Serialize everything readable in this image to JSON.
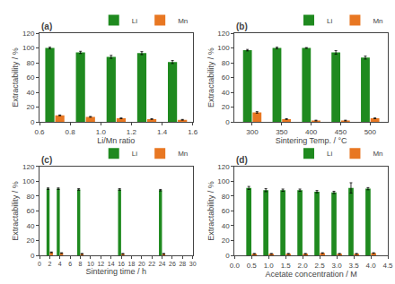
{
  "chart_data": [
    {
      "type": "bar",
      "title": "(a)",
      "x_label": "Li/Mn ratio",
      "y_label": "Extractability / %",
      "x": [
        0.7,
        0.9,
        1.1,
        1.3,
        1.5
      ],
      "series": [
        {
          "name": "Li",
          "color": "#1f8a1f",
          "values": [
            100,
            94,
            88,
            93,
            81
          ],
          "errors": [
            1.0,
            1.5,
            2.0,
            2.0,
            2.0
          ]
        },
        {
          "name": "Mn",
          "color": "#e87722",
          "values": [
            9,
            7,
            5,
            4,
            3
          ],
          "errors": [
            0.5,
            0.5,
            0.5,
            0.5,
            0.5
          ]
        }
      ],
      "xlim": [
        0.6,
        1.6
      ],
      "xticks": [
        0.6,
        0.8,
        {
          "value": 1.0,
          "label": "1.0"
        },
        1.2,
        1.4,
        1.6
      ],
      "ylim": [
        0,
        120
      ],
      "yticks": [
        0,
        20,
        40,
        60,
        80,
        100,
        120
      ],
      "grid": false,
      "legend": "upper right"
    },
    {
      "type": "bar",
      "title": "(b)",
      "x_label": "Sintering Temp. / °C",
      "y_label": "Extractability / %",
      "x": [
        300,
        350,
        400,
        450,
        500
      ],
      "series": [
        {
          "name": "Li",
          "color": "#1f8a1f",
          "values": [
            97,
            100,
            100,
            94,
            87
          ],
          "errors": [
            1.0,
            1.0,
            0.5,
            2.5,
            2.0
          ]
        },
        {
          "name": "Mn",
          "color": "#e87722",
          "values": [
            13,
            4,
            2,
            2,
            5
          ],
          "errors": [
            1.0,
            0.5,
            0.5,
            0.5,
            0.5
          ]
        }
      ],
      "xlim": [
        270,
        530
      ],
      "xticks": [
        300,
        350,
        400,
        450,
        500
      ],
      "ylim": [
        0,
        120
      ],
      "yticks": [
        0,
        20,
        40,
        60,
        80,
        100,
        120
      ],
      "grid": false,
      "legend": "upper right"
    },
    {
      "type": "bar",
      "title": "(c)",
      "x_label": "Sintering time / h",
      "y_label": "Extractability / %",
      "x": [
        2,
        4,
        8,
        16,
        24
      ],
      "series": [
        {
          "name": "Li",
          "color": "#1f8a1f",
          "values": [
            90,
            90,
            89,
            89,
            88
          ],
          "errors": [
            1.0,
            1.0,
            1.0,
            1.0,
            1.0
          ]
        },
        {
          "name": "Mn",
          "color": "#e87722",
          "values": [
            4,
            3,
            2,
            2,
            2
          ],
          "errors": [
            0.5,
            0.5,
            0.5,
            0.5,
            0.5
          ]
        }
      ],
      "xlim": [
        0,
        30
      ],
      "xticks": [
        0,
        2,
        4,
        6,
        8,
        10,
        12,
        14,
        16,
        18,
        20,
        22,
        24,
        26,
        28,
        30
      ],
      "ylim": [
        0,
        120
      ],
      "yticks": [
        0,
        20,
        40,
        60,
        80,
        100,
        120
      ],
      "grid": false,
      "legend": "upper right"
    },
    {
      "type": "bar",
      "title": "(d)",
      "x_label": "Acetate concentration / M",
      "y_label": "Extractability / %",
      "x": [
        0.5,
        1.0,
        1.5,
        2.0,
        2.5,
        3.0,
        3.5,
        4.0
      ],
      "series": [
        {
          "name": "Li",
          "color": "#1f8a1f",
          "values": [
            91,
            88,
            88,
            88,
            86,
            85,
            91,
            90
          ],
          "errors": [
            2.0,
            2.0,
            1.5,
            1.5,
            1.5,
            1.5,
            7.0,
            1.5
          ]
        },
        {
          "name": "Mn",
          "color": "#e87722",
          "values": [
            2,
            2,
            2,
            2,
            3,
            2,
            2,
            3
          ],
          "errors": [
            0.5,
            0.5,
            0.5,
            0.5,
            0.5,
            0.5,
            0.5,
            0.5
          ]
        }
      ],
      "xlim": [
        0.0,
        4.5
      ],
      "xticks": [
        {
          "value": 0.0,
          "label": "0.0"
        },
        0.5,
        {
          "value": 1.0,
          "label": "1.0"
        },
        1.5,
        {
          "value": 2.0,
          "label": "2.0"
        },
        2.5,
        {
          "value": 3.0,
          "label": "3.0"
        },
        3.5,
        {
          "value": 4.0,
          "label": "4.0"
        },
        4.5
      ],
      "ylim": [
        0,
        120
      ],
      "yticks": [
        0,
        20,
        40,
        60,
        80,
        100,
        120
      ],
      "grid": false,
      "legend": "upper right"
    }
  ]
}
